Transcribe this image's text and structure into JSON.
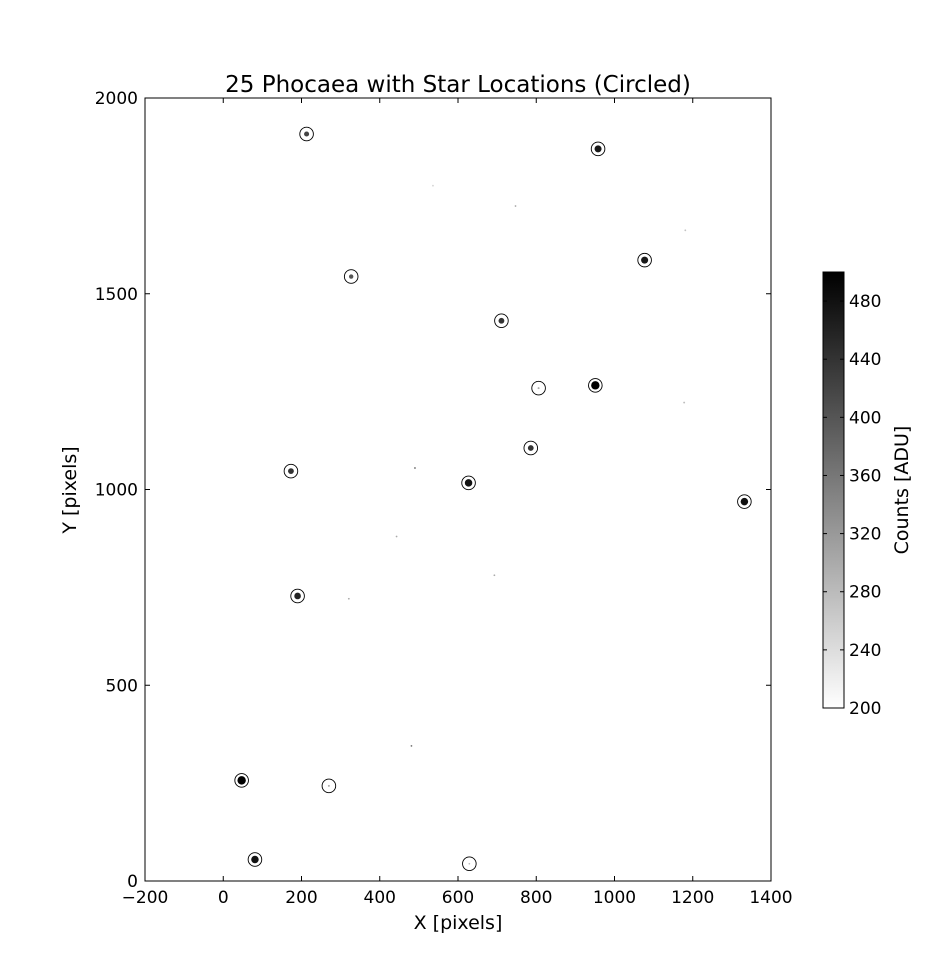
{
  "chart_data": {
    "type": "scatter",
    "title": "25 Phocaea with Star Locations (Circled)",
    "xlabel": "X [pixels]",
    "ylabel": "Y [pixels]",
    "xlim": [
      -200,
      1400
    ],
    "ylim": [
      0,
      2000
    ],
    "xticks": [
      "−200",
      "0",
      "200",
      "400",
      "600",
      "800",
      "1000",
      "1200",
      "1400"
    ],
    "yticks": [
      "0",
      "500",
      "1000",
      "1500",
      "2000"
    ],
    "grid": false,
    "colormap": "gray_r",
    "colorbar": {
      "label": "Counts [ADU]",
      "range": [
        200,
        500
      ],
      "ticks": [
        "200",
        "240",
        "280",
        "320",
        "360",
        "400",
        "440",
        "480"
      ]
    },
    "circled_stars": [
      {
        "x": 213,
        "y": 1908,
        "counts": 420
      },
      {
        "x": 958,
        "y": 1870,
        "counts": 470
      },
      {
        "x": 1077,
        "y": 1586,
        "counts": 470
      },
      {
        "x": 327,
        "y": 1544,
        "counts": 400
      },
      {
        "x": 711,
        "y": 1431,
        "counts": 440
      },
      {
        "x": 806,
        "y": 1259,
        "counts": 300
      },
      {
        "x": 951,
        "y": 1266,
        "counts": 500
      },
      {
        "x": 786,
        "y": 1106,
        "counts": 440
      },
      {
        "x": 173,
        "y": 1047,
        "counts": 440
      },
      {
        "x": 627,
        "y": 1017,
        "counts": 480
      },
      {
        "x": 1332,
        "y": 969,
        "counts": 480
      },
      {
        "x": 190,
        "y": 728,
        "counts": 460
      },
      {
        "x": 47,
        "y": 257,
        "counts": 500
      },
      {
        "x": 270,
        "y": 243,
        "counts": 300
      },
      {
        "x": 81,
        "y": 55,
        "counts": 480
      },
      {
        "x": 629,
        "y": 44,
        "counts": 280
      }
    ],
    "faint_sources": [
      {
        "x": 490,
        "y": 1055,
        "counts": 380
      },
      {
        "x": 481,
        "y": 345,
        "counts": 360
      },
      {
        "x": 747,
        "y": 1724,
        "counts": 300
      },
      {
        "x": 443,
        "y": 880,
        "counts": 300
      },
      {
        "x": 321,
        "y": 721,
        "counts": 300
      },
      {
        "x": 693,
        "y": 781,
        "counts": 300
      },
      {
        "x": 1178,
        "y": 1222,
        "counts": 280
      },
      {
        "x": 1181,
        "y": 1662,
        "counts": 270
      },
      {
        "x": 536,
        "y": 1776,
        "counts": 250
      }
    ]
  }
}
